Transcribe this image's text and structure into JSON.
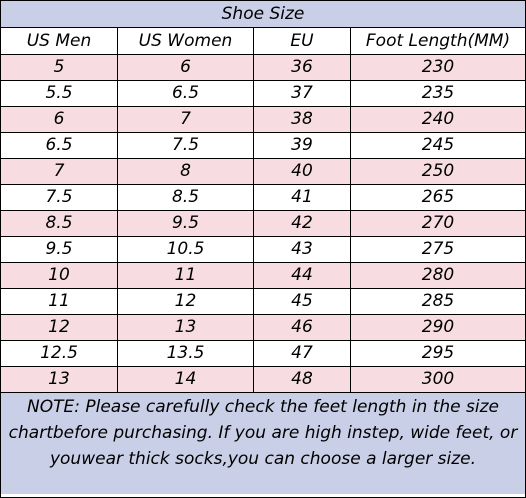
{
  "title": "Shoe Size",
  "columns": [
    "US Men",
    "US Women",
    "EU",
    "Foot Length(MM)"
  ],
  "rows": [
    [
      "5",
      "6",
      "36",
      "230"
    ],
    [
      "5.5",
      "6.5",
      "37",
      "235"
    ],
    [
      "6",
      "7",
      "38",
      "240"
    ],
    [
      "6.5",
      "7.5",
      "39",
      "245"
    ],
    [
      "7",
      "8",
      "40",
      "250"
    ],
    [
      "7.5",
      "8.5",
      "41",
      "265"
    ],
    [
      "8.5",
      "9.5",
      "42",
      "270"
    ],
    [
      "9.5",
      "10.5",
      "43",
      "275"
    ],
    [
      "10",
      "11",
      "44",
      "280"
    ],
    [
      "11",
      "12",
      "45",
      "285"
    ],
    [
      "12",
      "13",
      "46",
      "290"
    ],
    [
      "12.5",
      "13.5",
      "47",
      "295"
    ],
    [
      "13",
      "14",
      "48",
      "300"
    ]
  ],
  "note": {
    "lines": [
      "NOTE: Please carefully check the feet length in the size",
      "chartbefore purchasing. If you are high instep, wide feet, or",
      "youwear thick socks,you can choose a larger size."
    ]
  },
  "colors": {
    "header_band": "#c9cfe6",
    "alt_row": "#f7dde2",
    "white_row": "#ffffff",
    "border": "#000000"
  }
}
